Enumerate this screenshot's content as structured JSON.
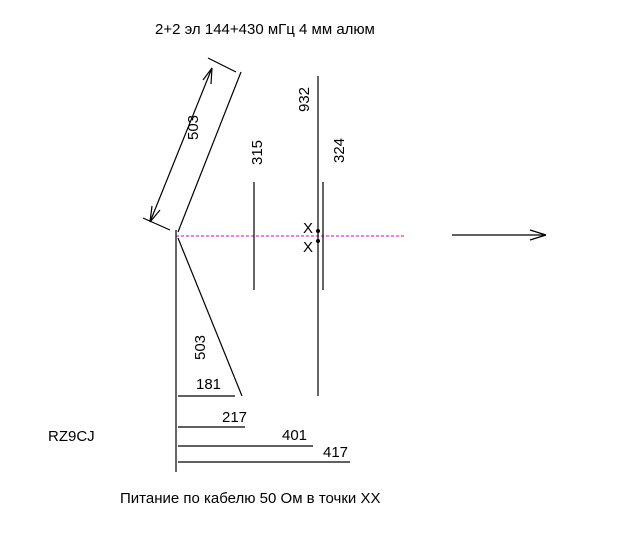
{
  "title": "2+2 эл  144+430 мГц    4 мм алюм",
  "callsign": "RZ9CJ",
  "footer": "Питание по кабелю 50 Ом в точки ХХ",
  "dimensions": {
    "upper_diag": "503",
    "lower_diag": "503",
    "vhf_reflector": "315",
    "uhf_driven": "932",
    "uhf_director": "324",
    "boom_181": "181",
    "boom_217": "217",
    "boom_401": "401",
    "boom_417": "417"
  },
  "feed_mark_top": "X",
  "feed_mark_bottom": "X"
}
